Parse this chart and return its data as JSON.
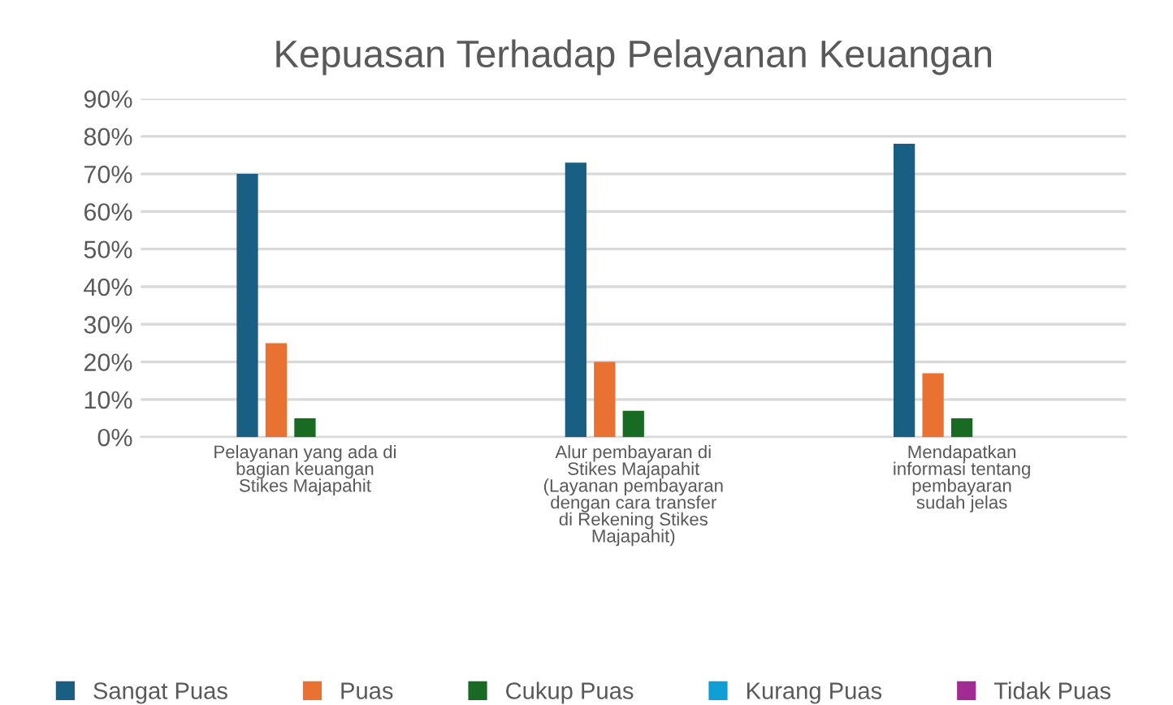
{
  "chart_data": {
    "type": "bar",
    "title": "Kepuasan Terhadap Pelayanan Keuangan",
    "categories": [
      "Pelayanan yang ada di\nbagian keuangan\nStikes Majapahit",
      "Alur pembayaran di\nStikes Majapahit\n(Layanan pembayaran\ndengan cara transfer\ndi Rekening Stikes\nMajapahit)",
      "Mendapatkan\ninformasi tentang\npembayaran\nsudah jelas"
    ],
    "series": [
      {
        "name": "Sangat Puas",
        "color": "#195e83",
        "values": [
          70,
          73,
          78
        ]
      },
      {
        "name": "Puas",
        "color": "#e97132",
        "values": [
          25,
          20,
          17
        ]
      },
      {
        "name": "Cukup Puas",
        "color": "#196b24",
        "values": [
          5,
          7,
          5
        ]
      },
      {
        "name": "Kurang Puas",
        "color": "#0f9ed5",
        "values": [
          0,
          0,
          0
        ]
      },
      {
        "name": "Tidak Puas",
        "color": "#a02b93",
        "values": [
          0,
          0,
          0
        ]
      }
    ],
    "ylim": [
      0,
      90
    ],
    "yticks": [
      {
        "value": 0,
        "label": "0%"
      },
      {
        "value": 10,
        "label": "10%"
      },
      {
        "value": 20,
        "label": "20%"
      },
      {
        "value": 30,
        "label": "30%"
      },
      {
        "value": 40,
        "label": "40%"
      },
      {
        "value": 50,
        "label": "50%"
      },
      {
        "value": 60,
        "label": "60%"
      },
      {
        "value": 70,
        "label": "70%"
      },
      {
        "value": 80,
        "label": "80%"
      },
      {
        "value": 90,
        "label": "90%"
      }
    ],
    "grid": "y",
    "legend": "bottom"
  }
}
